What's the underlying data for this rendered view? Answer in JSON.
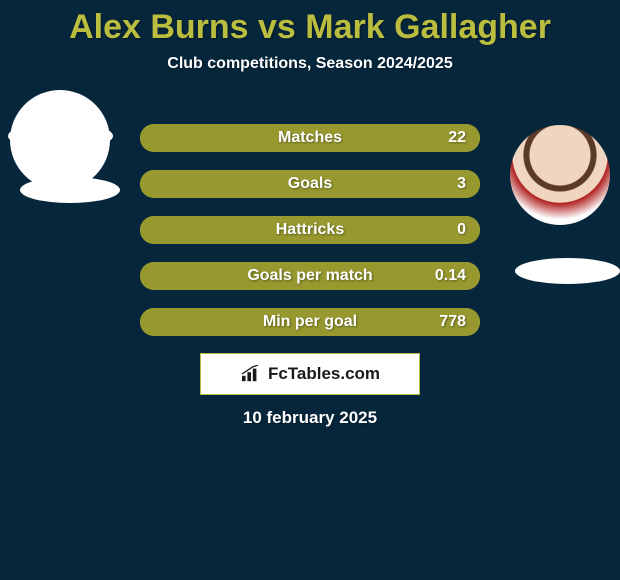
{
  "colors": {
    "background": "#06263b",
    "title": "#bbbd3e",
    "subtitle": "#ffffff",
    "bar_bg": "#bbbd3e",
    "bar_fill": "#97992f",
    "bar_text": "#ffffff",
    "logo_border": "#bbbd3e",
    "logo_bg": "#ffffff",
    "logo_text": "#1a1a1a",
    "date_text": "#ffffff"
  },
  "typography": {
    "title_size": 34,
    "subtitle_size": 16,
    "bar_label_size": 16,
    "bar_value_size": 16,
    "logo_size": 17,
    "date_size": 17
  },
  "title": "Alex Burns vs Mark Gallagher",
  "subtitle": "Club competitions, Season 2024/2025",
  "stats": [
    {
      "label": "Matches",
      "value_right": "22",
      "fill_pct": 100
    },
    {
      "label": "Goals",
      "value_right": "3",
      "fill_pct": 100
    },
    {
      "label": "Hattricks",
      "value_right": "0",
      "fill_pct": 100
    },
    {
      "label": "Goals per match",
      "value_right": "0.14",
      "fill_pct": 100
    },
    {
      "label": "Min per goal",
      "value_right": "778",
      "fill_pct": 100
    }
  ],
  "logo": {
    "text": "FcTables.com"
  },
  "date": "10 february 2025"
}
